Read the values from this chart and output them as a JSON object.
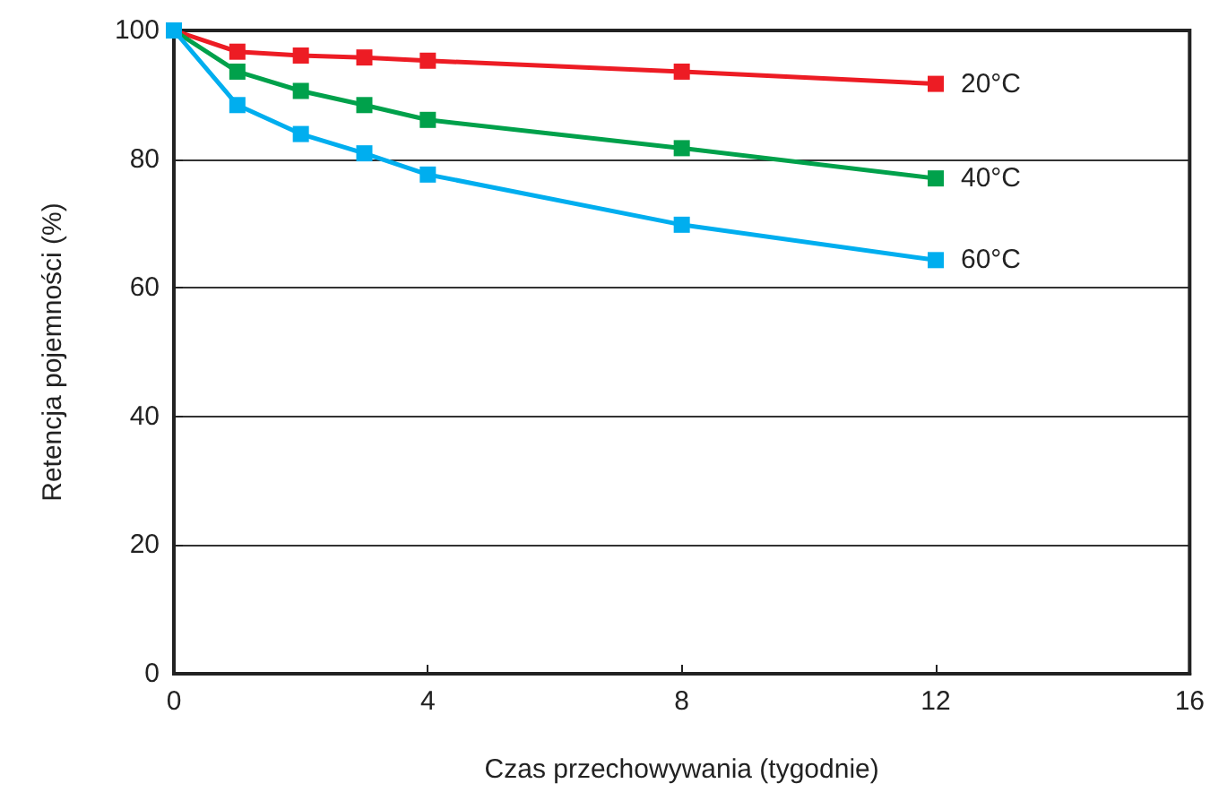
{
  "chart_data": {
    "type": "line",
    "xlabel": "Czas przechowywania (tygodnie)",
    "ylabel": "Retencja pojemności (%)",
    "x": [
      0,
      1,
      2,
      3,
      4,
      8,
      12
    ],
    "series": [
      {
        "name": "20°C",
        "color": "#ed1c24",
        "values": [
          100,
          96.7,
          96.1,
          95.8,
          95.3,
          93.6,
          91.7
        ]
      },
      {
        "name": "40°C",
        "color": "#00a14b",
        "values": [
          100,
          93.6,
          90.6,
          88.4,
          86.1,
          81.7,
          77.0
        ]
      },
      {
        "name": "60°C",
        "color": "#00aeef",
        "values": [
          100,
          88.4,
          83.9,
          80.9,
          77.6,
          69.8,
          64.3
        ]
      }
    ],
    "xlim": [
      0,
      16
    ],
    "xticks": [
      0,
      4,
      8,
      12,
      16
    ],
    "ylim": [
      0,
      100
    ],
    "yticks": [
      0,
      20,
      40,
      60,
      80,
      100
    ],
    "grid": "y",
    "legend": false,
    "marker": "square",
    "line_style": "solid"
  }
}
